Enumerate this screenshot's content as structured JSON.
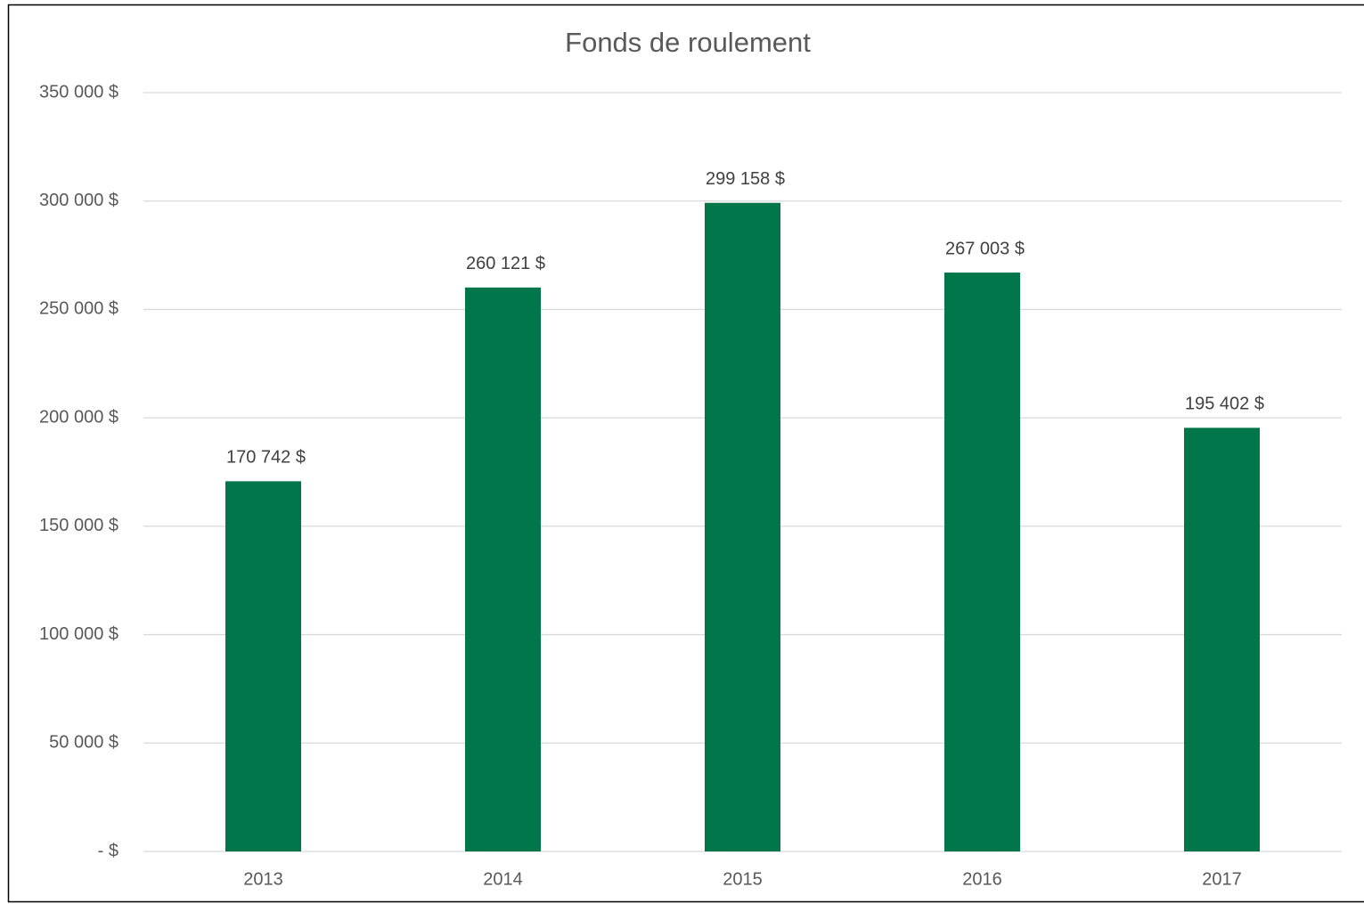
{
  "chart_data": {
    "type": "bar",
    "title": "Fonds de roulement",
    "categories": [
      "2013",
      "2014",
      "2015",
      "2016",
      "2017"
    ],
    "values": [
      170742,
      260121,
      299158,
      267003,
      195402
    ],
    "value_labels": [
      "170 742  $",
      "260 121  $",
      "299 158  $",
      "267 003  $",
      "195 402  $"
    ],
    "color": "#00764a",
    "ylim": [
      0,
      350000
    ],
    "yticks": [
      {
        "value": 0,
        "label": "-   $"
      },
      {
        "value": 50000,
        "label": "50 000  $"
      },
      {
        "value": 100000,
        "label": "100 000  $"
      },
      {
        "value": 150000,
        "label": "150 000  $"
      },
      {
        "value": 200000,
        "label": "200 000  $"
      },
      {
        "value": 250000,
        "label": "250 000  $"
      },
      {
        "value": 300000,
        "label": "300 000  $"
      },
      {
        "value": 350000,
        "label": "350 000  $"
      }
    ],
    "grid": true
  }
}
